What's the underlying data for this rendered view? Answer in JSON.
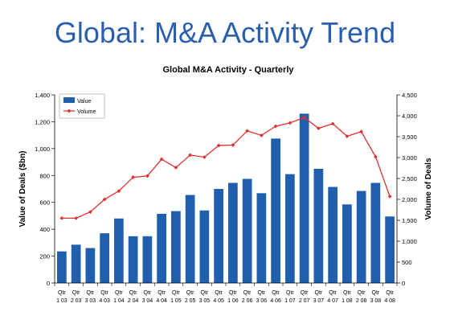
{
  "slide": {
    "title": "Global: M&A Activity Trend"
  },
  "chart_data": {
    "type": "bar",
    "title": "Global M&A Activity - Quarterly",
    "ylabel": "Value of Deals ($bn)",
    "y2label": "Volume of Deals",
    "ylim": [
      0,
      1400
    ],
    "y2lim": [
      0,
      4500
    ],
    "yticks": [
      "0",
      "200",
      "400",
      "600",
      "800",
      "1,000",
      "1,200",
      "1,400"
    ],
    "y2ticks": [
      "0",
      "500",
      "1,000",
      "1,500",
      "2,000",
      "2,500",
      "3,000",
      "3,500",
      "4,000",
      "4,500"
    ],
    "categories": [
      [
        "Qtr",
        "1 03"
      ],
      [
        "Qtr",
        "2 03"
      ],
      [
        "Qtr",
        "3 03"
      ],
      [
        "Qtr",
        "4 03"
      ],
      [
        "Qtr",
        "1 04"
      ],
      [
        "Qtr",
        "2 04"
      ],
      [
        "Qtr",
        "3 04"
      ],
      [
        "Qtr",
        "4 04"
      ],
      [
        "Qtr",
        "1 05"
      ],
      [
        "Qtr",
        "2 05"
      ],
      [
        "Qtr",
        "3 05"
      ],
      [
        "Qtr",
        "4 05"
      ],
      [
        "Qtr",
        "1 06"
      ],
      [
        "Qtr",
        "2 06"
      ],
      [
        "Qtr",
        "3 06"
      ],
      [
        "Qtr",
        "4 06"
      ],
      [
        "Qtr",
        "1 07"
      ],
      [
        "Qtr",
        "2 07"
      ],
      [
        "Qtr",
        "3 07"
      ],
      [
        "Qtr",
        "4 07"
      ],
      [
        "Qtr",
        "1 08"
      ],
      [
        "Qtr",
        "2 08"
      ],
      [
        "Qtr",
        "3 08"
      ],
      [
        "Qtr",
        "4 08"
      ]
    ],
    "series": [
      {
        "name": "Value",
        "kind": "bar",
        "axis": "left",
        "color": "#1f5fad",
        "values": [
          235,
          285,
          260,
          370,
          480,
          348,
          348,
          515,
          535,
          655,
          540,
          700,
          745,
          775,
          668,
          1075,
          810,
          1260,
          850,
          715,
          585,
          685,
          745,
          495
        ]
      },
      {
        "name": "Volume",
        "kind": "line",
        "axis": "right",
        "color": "#e03030",
        "values": [
          1550,
          1550,
          1700,
          2000,
          2200,
          2530,
          2560,
          2960,
          2760,
          3060,
          3010,
          3290,
          3300,
          3640,
          3530,
          3750,
          3830,
          3960,
          3700,
          3810,
          3510,
          3620,
          3020,
          2070
        ]
      }
    ],
    "legend": "top-left"
  }
}
